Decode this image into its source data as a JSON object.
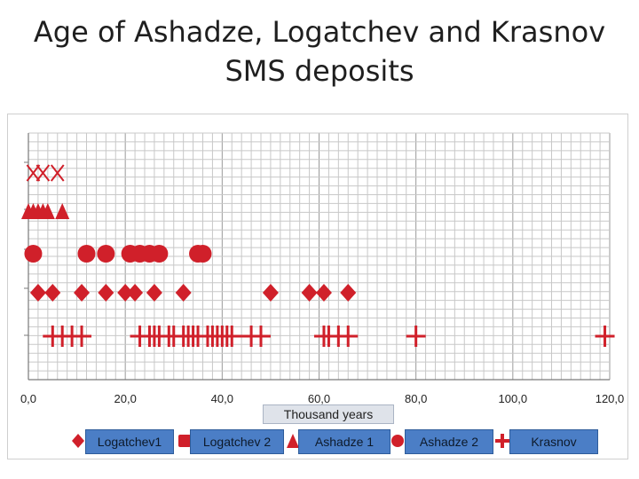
{
  "slide": {
    "title_line1": "Age of Ashadze, Logatchev and  Krasnov",
    "title_line2": "SMS deposits"
  },
  "chart_data": {
    "type": "scatter",
    "title": "",
    "xlabel": "Thousand years",
    "ylabel": "",
    "xlim": [
      0,
      120
    ],
    "xticks": [
      "0,0",
      "20,0",
      "40,0",
      "60,0",
      "80,0",
      "100,0",
      "120,0"
    ],
    "grid": true,
    "legend_position": "bottom",
    "series": [
      {
        "name": "Logatchev1",
        "marker": "diamond",
        "color": "#d0202a",
        "values": [
          2,
          5,
          11,
          16,
          20,
          22,
          26,
          32,
          50,
          58,
          61,
          66
        ]
      },
      {
        "name": "Logatchev 2",
        "marker": "circle",
        "color": "#d0202a",
        "values": [
          1,
          12,
          16,
          21,
          23,
          25,
          27,
          35,
          36
        ]
      },
      {
        "name": "Ashadze 1",
        "marker": "triangle",
        "color": "#d0202a",
        "values": [
          0,
          1,
          2,
          3,
          4,
          7
        ]
      },
      {
        "name": "Ashadze 2",
        "marker": "x",
        "color": "#d0202a",
        "values": [
          1,
          3,
          6
        ]
      },
      {
        "name": "Krasnov",
        "marker": "cross",
        "color": "#d0202a",
        "values": [
          5,
          7,
          9,
          11,
          23,
          25,
          26,
          27,
          29,
          30,
          32,
          33,
          34,
          35,
          37,
          38,
          39,
          40,
          41,
          42,
          46,
          48,
          61,
          62,
          64,
          66,
          80,
          119
        ]
      }
    ]
  }
}
